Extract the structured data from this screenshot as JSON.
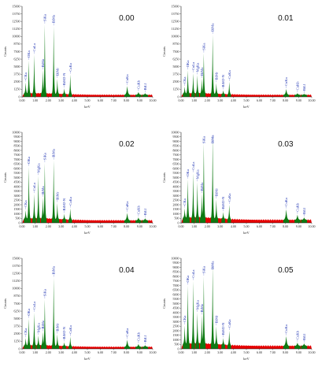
{
  "chart_data": [
    {
      "type": "area",
      "title": "0.00",
      "xlabel": "keV",
      "ylabel": "Counts",
      "xlim": [
        0,
        10
      ],
      "ylim": [
        0,
        15000
      ],
      "x_ticks": [
        "0.00",
        "1.00",
        "2.00",
        "3.00",
        "4.00",
        "5.00",
        "6.00",
        "7.00",
        "8.00",
        "9.00",
        "10.00"
      ],
      "y_ticks": [
        "0",
        "1250",
        "2500",
        "3750",
        "5000",
        "6250",
        "7500",
        "8750",
        "10000",
        "11250",
        "12500",
        "13750",
        "15000"
      ],
      "grid": false,
      "background_level": 600,
      "series": [
        {
          "name": "CKa",
          "energy": 0.28,
          "counts": 2400
        },
        {
          "name": "OKa",
          "energy": 0.52,
          "counts": 6000
        },
        {
          "name": "CuLa",
          "energy": 0.93,
          "counts": 7000
        },
        {
          "name": "BiMz",
          "energy": 1.59,
          "counts": 4400
        },
        {
          "name": "SiKa",
          "energy": 1.74,
          "counts": 12000
        },
        {
          "name": "BiMa",
          "energy": 2.42,
          "counts": 11700
        },
        {
          "name": "BiMr",
          "energy": 2.7,
          "counts": 3000
        },
        {
          "name": "BiM2-N",
          "energy": 3.23,
          "counts": 1400
        },
        {
          "name": "CaKa",
          "energy": 3.69,
          "counts": 3700
        },
        {
          "name": "CuKa",
          "energy": 8.05,
          "counts": 1800
        },
        {
          "name": "CuKb",
          "energy": 8.91,
          "counts": 800
        },
        {
          "name": "BiLl",
          "energy": 9.42,
          "counts": 600
        }
      ]
    },
    {
      "type": "area",
      "title": "0.01",
      "xlabel": "keV",
      "ylabel": "Counts",
      "xlim": [
        0,
        10
      ],
      "ylim": [
        0,
        15000
      ],
      "x_ticks": [
        "0.00",
        "1.00",
        "2.00",
        "3.00",
        "4.00",
        "5.00",
        "6.00",
        "7.00",
        "8.00",
        "9.00",
        "10.00"
      ],
      "y_ticks": [
        "0",
        "1250",
        "2500",
        "3750",
        "5000",
        "6250",
        "7500",
        "8750",
        "10000",
        "11250",
        "12500",
        "13750",
        "15000"
      ],
      "grid": false,
      "background_level": 600,
      "series": [
        {
          "name": "CKa",
          "energy": 0.28,
          "counts": 1700
        },
        {
          "name": "OKa",
          "energy": 0.52,
          "counts": 4400
        },
        {
          "name": "CuLa",
          "energy": 0.93,
          "counts": 3900
        },
        {
          "name": "MgKa",
          "energy": 1.25,
          "counts": 3600
        },
        {
          "name": "BiMz",
          "energy": 1.59,
          "counts": 3000
        },
        {
          "name": "SiKa",
          "energy": 1.74,
          "counts": 7200
        },
        {
          "name": "BiMa",
          "energy": 2.42,
          "counts": 10300
        },
        {
          "name": "BiMr",
          "energy": 2.7,
          "counts": 2300
        },
        {
          "name": "BiM2-N",
          "energy": 3.23,
          "counts": 1100
        },
        {
          "name": "CaKa",
          "energy": 3.69,
          "counts": 2500
        },
        {
          "name": "CuKa",
          "energy": 8.05,
          "counts": 1300
        },
        {
          "name": "CuKb",
          "energy": 8.91,
          "counts": 600
        },
        {
          "name": "BiLl",
          "energy": 9.42,
          "counts": 500
        }
      ]
    },
    {
      "type": "area",
      "title": "0.02",
      "xlabel": "keV",
      "ylabel": "Counts",
      "xlim": [
        0,
        10
      ],
      "ylim": [
        0,
        10000
      ],
      "x_ticks": [
        "0.00",
        "1.00",
        "2.00",
        "3.00",
        "4.00",
        "5.00",
        "6.00",
        "7.00",
        "8.00",
        "9.00",
        "10.00"
      ],
      "y_ticks": [
        "0",
        "500",
        "1000",
        "1500",
        "2000",
        "2500",
        "3000",
        "3500",
        "4000",
        "4500",
        "5000",
        "5500",
        "6000",
        "6500",
        "7000",
        "7500",
        "8000",
        "8500",
        "9000",
        "9500",
        "10000"
      ],
      "grid": false,
      "background_level": 500,
      "series": [
        {
          "name": "CKa",
          "energy": 0.28,
          "counts": 1400
        },
        {
          "name": "OKa",
          "energy": 0.52,
          "counts": 6200
        },
        {
          "name": "CuLa",
          "energy": 0.93,
          "counts": 3200
        },
        {
          "name": "MgKa",
          "energy": 1.25,
          "counts": 5200
        },
        {
          "name": "BiMz",
          "energy": 1.59,
          "counts": 2800
        },
        {
          "name": "SiKa",
          "energy": 1.74,
          "counts": 6600
        },
        {
          "name": "BiMa",
          "energy": 2.42,
          "counts": 6900
        },
        {
          "name": "BiMr",
          "energy": 2.7,
          "counts": 2200
        },
        {
          "name": "BiM2-N",
          "energy": 3.23,
          "counts": 1000
        },
        {
          "name": "CaKa",
          "energy": 3.69,
          "counts": 1600
        },
        {
          "name": "CuKa",
          "energy": 8.05,
          "counts": 1100
        },
        {
          "name": "CuKb",
          "energy": 8.91,
          "counts": 600
        },
        {
          "name": "BiLl",
          "energy": 9.42,
          "counts": 500
        }
      ]
    },
    {
      "type": "area",
      "title": "0.03",
      "xlabel": "keV",
      "ylabel": "Counts",
      "xlim": [
        0,
        10
      ],
      "ylim": [
        0,
        10000
      ],
      "x_ticks": [
        "0.00",
        "1.00",
        "2.00",
        "3.00",
        "4.00",
        "5.00",
        "6.00",
        "7.00",
        "8.00",
        "9.00",
        "10.00"
      ],
      "y_ticks": [
        "0",
        "500",
        "1000",
        "1500",
        "2000",
        "2500",
        "3000",
        "3500",
        "4000",
        "4500",
        "5000",
        "5500",
        "6000",
        "6500",
        "7000",
        "7500",
        "8000",
        "8500",
        "9000",
        "9500",
        "10000"
      ],
      "grid": false,
      "background_level": 600,
      "series": [
        {
          "name": "CKa",
          "energy": 0.28,
          "counts": 1600
        },
        {
          "name": "OKa",
          "energy": 0.52,
          "counts": 4800
        },
        {
          "name": "CuLa",
          "energy": 0.93,
          "counts": 5500
        },
        {
          "name": "MgKa",
          "energy": 1.25,
          "counts": 4500
        },
        {
          "name": "BiMz",
          "energy": 1.59,
          "counts": 3200
        },
        {
          "name": "SiKa",
          "energy": 1.74,
          "counts": 8800
        },
        {
          "name": "BiMa",
          "energy": 2.42,
          "counts": 9600
        },
        {
          "name": "BiMr",
          "energy": 2.7,
          "counts": 2600
        },
        {
          "name": "BiM2-N",
          "energy": 3.23,
          "counts": 1200
        },
        {
          "name": "CaKa",
          "energy": 3.69,
          "counts": 2000
        },
        {
          "name": "CuKa",
          "energy": 8.05,
          "counts": 1500
        },
        {
          "name": "CuKb",
          "energy": 8.91,
          "counts": 900
        },
        {
          "name": "BiLl",
          "energy": 9.42,
          "counts": 600
        }
      ]
    },
    {
      "type": "area",
      "title": "0.04",
      "xlabel": "keV",
      "ylabel": "Counts",
      "xlim": [
        0,
        10
      ],
      "ylim": [
        0,
        15000
      ],
      "x_ticks": [
        "0.00",
        "1.00",
        "2.00",
        "3.00",
        "4.00",
        "5.00",
        "6.00",
        "7.00",
        "8.00",
        "9.00",
        "10.00"
      ],
      "y_ticks": [
        "0",
        "1250",
        "2500",
        "3750",
        "5000",
        "6250",
        "7500",
        "8750",
        "10000",
        "11250",
        "12500",
        "13750",
        "15000"
      ],
      "grid": false,
      "background_level": 600,
      "series": [
        {
          "name": "CKa",
          "energy": 0.28,
          "counts": 1800
        },
        {
          "name": "OKa",
          "energy": 0.52,
          "counts": 5000
        },
        {
          "name": "CuLa",
          "energy": 0.93,
          "counts": 6000
        },
        {
          "name": "MgKa",
          "energy": 1.25,
          "counts": 2200
        },
        {
          "name": "BiMz",
          "energy": 1.59,
          "counts": 2800
        },
        {
          "name": "SiKa",
          "energy": 1.74,
          "counts": 8200
        },
        {
          "name": "BiMa",
          "energy": 2.42,
          "counts": 11800
        },
        {
          "name": "BiMr",
          "energy": 2.7,
          "counts": 2400
        },
        {
          "name": "BiM2-N",
          "energy": 3.23,
          "counts": 1100
        },
        {
          "name": "CaKa",
          "energy": 3.69,
          "counts": 2000
        },
        {
          "name": "CuKa",
          "energy": 8.05,
          "counts": 1500
        },
        {
          "name": "CuKb",
          "energy": 8.91,
          "counts": 800
        },
        {
          "name": "BiLl",
          "energy": 9.42,
          "counts": 600
        }
      ]
    },
    {
      "type": "area",
      "title": "0.05",
      "xlabel": "keV",
      "ylabel": "Counts",
      "xlim": [
        0,
        10
      ],
      "ylim": [
        0,
        10000
      ],
      "x_ticks": [
        "0.00",
        "1.00",
        "2.00",
        "3.00",
        "4.00",
        "5.00",
        "6.00",
        "7.00",
        "8.00",
        "9.00",
        "10.00"
      ],
      "y_ticks": [
        "0",
        "500",
        "1000",
        "1500",
        "2000",
        "2500",
        "3000",
        "3500",
        "4000",
        "4500",
        "5000",
        "5500",
        "6000",
        "6500",
        "7000",
        "7500",
        "8000",
        "8500",
        "9000",
        "9500",
        "10000"
      ],
      "grid": false,
      "background_level": 600,
      "series": [
        {
          "name": "CKa",
          "energy": 0.28,
          "counts": 2600
        },
        {
          "name": "OKa",
          "energy": 0.52,
          "counts": 7000
        },
        {
          "name": "CuLa",
          "energy": 0.93,
          "counts": 7500
        },
        {
          "name": "MgKa",
          "energy": 1.25,
          "counts": 4000
        },
        {
          "name": "BiMz",
          "energy": 1.59,
          "counts": 3700
        },
        {
          "name": "SiKa",
          "energy": 1.74,
          "counts": 8000
        },
        {
          "name": "BiMa",
          "energy": 2.42,
          "counts": 9200
        },
        {
          "name": "BiMr",
          "energy": 2.7,
          "counts": 2500
        },
        {
          "name": "BiM2-N",
          "energy": 3.23,
          "counts": 1200
        },
        {
          "name": "CaKa",
          "energy": 3.69,
          "counts": 2000
        },
        {
          "name": "CuKa",
          "energy": 8.05,
          "counts": 1400
        },
        {
          "name": "CuKb",
          "energy": 8.91,
          "counts": 700
        },
        {
          "name": "BiLl",
          "energy": 9.42,
          "counts": 600
        }
      ]
    }
  ],
  "colors": {
    "background_fill": "#e60000",
    "peak_fill": "#0d7a12",
    "peak_label": "#1a2fb0",
    "axis": "#222222"
  }
}
